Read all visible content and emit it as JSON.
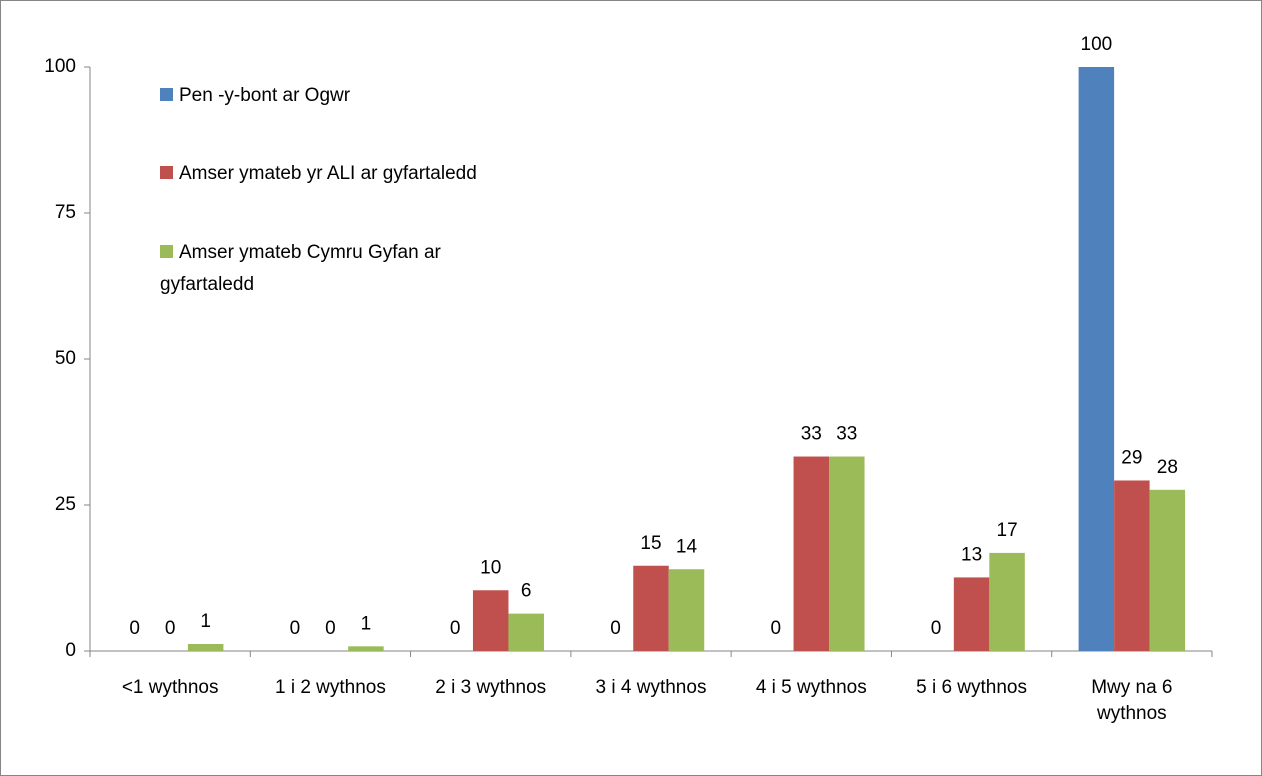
{
  "chart_data": {
    "type": "bar",
    "categories": [
      "<1 wythnos",
      "1 i 2 wythnos",
      "2 i 3 wythnos",
      "3 i 4 wythnos",
      "4 i 5 wythnos",
      "5 i 6 wythnos",
      "Mwy na 6 wythnos"
    ],
    "series": [
      {
        "name": "Pen -y-bont ar Ogwr",
        "color": "#4f81bd",
        "values": [
          0,
          0,
          0,
          0,
          0,
          0,
          100
        ],
        "value_labels": [
          "0",
          "0",
          "0",
          "0",
          "0",
          "0",
          "100"
        ]
      },
      {
        "name": "Amser ymateb yr ALI ar gyfartaledd",
        "color": "#c0504d",
        "values": [
          0,
          0,
          10.4,
          14.6,
          33.3,
          12.6,
          29.2
        ],
        "value_labels": [
          "0",
          "0",
          "10",
          "15",
          "33",
          "13",
          "29"
        ]
      },
      {
        "name": "Amser ymateb Cymru Gyfan ar gyfartaledd",
        "color": "#9bbb59",
        "values": [
          1.2,
          0.8,
          6.4,
          14.0,
          33.3,
          16.8,
          27.6
        ],
        "value_labels": [
          "1",
          "1",
          "6",
          "14",
          "33",
          "17",
          "28"
        ]
      }
    ],
    "ylim": [
      0,
      100
    ],
    "yticks": [
      0,
      25,
      50,
      75,
      100
    ],
    "grid": false,
    "legend": "top-left"
  }
}
